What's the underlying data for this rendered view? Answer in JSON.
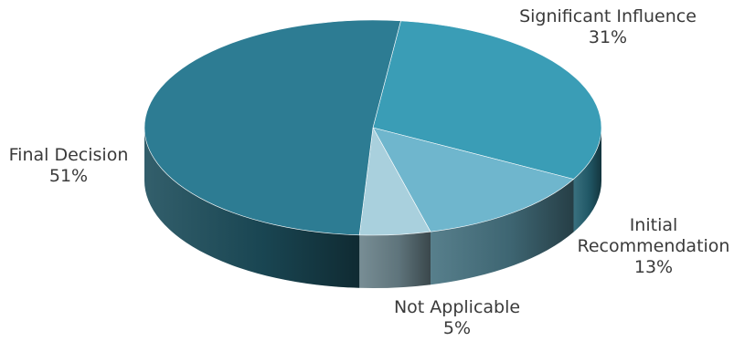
{
  "chart_data": {
    "type": "pie",
    "title": "",
    "series": [
      {
        "label": "Significant Influence",
        "value": 31,
        "value_label": "31%",
        "color": "#3a9db6"
      },
      {
        "label": "Initial Recommendation",
        "value": 13,
        "value_label": "13%",
        "color": "#6fb6cd"
      },
      {
        "label": "Not Applicable",
        "value": 5,
        "value_label": "5%",
        "color": "#a9d0dd"
      },
      {
        "label": "Final Decision",
        "value": 51,
        "value_label": "51%",
        "color": "#2d7c93"
      }
    ],
    "legend": "none",
    "style": "3d"
  }
}
